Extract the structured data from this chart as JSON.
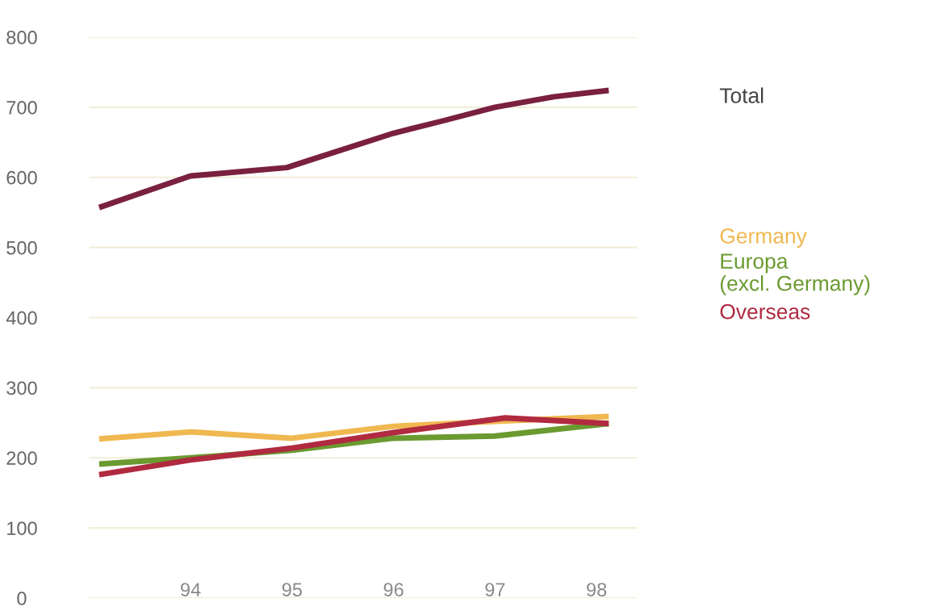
{
  "chart_data": {
    "type": "line",
    "xlim": [
      93.0,
      98.4
    ],
    "xticks": [
      94,
      95,
      96,
      97,
      98
    ],
    "ylim": [
      0,
      800
    ],
    "yticks": [
      0,
      100,
      200,
      300,
      400,
      500,
      600,
      700,
      800
    ],
    "grid": "y",
    "legend": false,
    "marker": "none",
    "line_style": "solid",
    "series": [
      {
        "name": "Total",
        "color": "#7a2040",
        "x": [
          93.1,
          94,
          94.95,
          95.12,
          96,
          96.47,
          97,
          97.58,
          98.12
        ],
        "values": [
          557,
          602,
          614,
          622,
          663,
          680,
          700,
          715,
          724
        ]
      },
      {
        "name": "Germany",
        "color": "#f0b850",
        "x": [
          93.1,
          94,
          95,
          96,
          97,
          98.12
        ],
        "values": [
          227,
          237,
          228,
          245,
          252,
          259
        ]
      },
      {
        "name": "Europa\n(excl. Germany)",
        "color": "#6a9a30",
        "x": [
          93.1,
          94,
          95,
          96,
          97,
          98.12
        ],
        "values": [
          191,
          200,
          211,
          228,
          231,
          249
        ]
      },
      {
        "name": "Overseas",
        "color": "#b02a40",
        "x": [
          93.1,
          94,
          95,
          96,
          97.1,
          98.12
        ],
        "values": [
          176,
          197,
          214,
          236,
          257,
          249
        ]
      }
    ]
  }
}
